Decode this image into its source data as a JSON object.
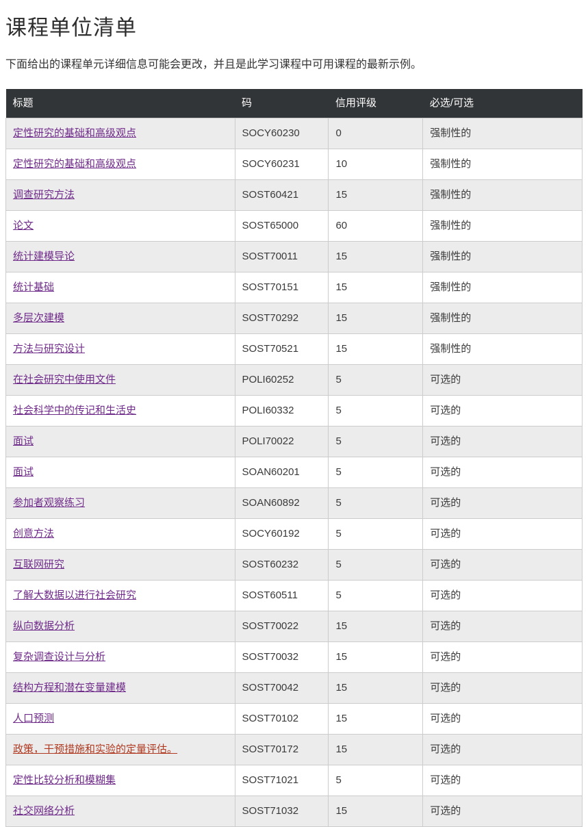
{
  "page": {
    "title": "课程单位清单",
    "intro": "下面给出的课程单元详细信息可能会更改，并且是此学习课程中可用课程的最新示例。"
  },
  "colors": {
    "table_header_bg": "#323537",
    "table_header_text": "#ffffff",
    "stripe_row_bg": "#ececec",
    "cell_border": "#cccccc",
    "link_purple": "#702c8a",
    "link_red": "#b03a21",
    "body_text": "#3a3a3a"
  },
  "table": {
    "headers": [
      "标题",
      "码",
      "信用评级",
      "必选/可选"
    ],
    "rows": [
      {
        "title": "定性研究的基础和高级观点",
        "code": "SOCY60230",
        "credit": "0",
        "requirement": "强制性的"
      },
      {
        "title": "定性研究的基础和高级观点",
        "code": "SOCY60231",
        "credit": "10",
        "requirement": "强制性的"
      },
      {
        "title": "调查研究方法",
        "code": "SOST60421",
        "credit": "15",
        "requirement": "强制性的"
      },
      {
        "title": "论文",
        "code": "SOST65000",
        "credit": "60",
        "requirement": "强制性的"
      },
      {
        "title": "统计建模导论",
        "code": "SOST70011",
        "credit": "15",
        "requirement": "强制性的"
      },
      {
        "title": "统计基础",
        "code": "SOST70151",
        "credit": "15",
        "requirement": "强制性的"
      },
      {
        "title": "多层次建模",
        "code": "SOST70292",
        "credit": "15",
        "requirement": "强制性的"
      },
      {
        "title": "方法与研究设计",
        "code": "SOST70521",
        "credit": "15",
        "requirement": "强制性的"
      },
      {
        "title": "在社会研究中使用文件",
        "code": "POLI60252",
        "credit": "5",
        "requirement": "可选的"
      },
      {
        "title": "社会科学中的传记和生活史",
        "code": "POLI60332",
        "credit": "5",
        "requirement": "可选的"
      },
      {
        "title": "面试",
        "code": "POLI70022",
        "credit": "5",
        "requirement": "可选的"
      },
      {
        "title": "面试",
        "code": "SOAN60201",
        "credit": "5",
        "requirement": "可选的"
      },
      {
        "title": "参加者观察练习",
        "code": "SOAN60892",
        "credit": "5",
        "requirement": "可选的"
      },
      {
        "title": "创意方法",
        "code": "SOCY60192",
        "credit": "5",
        "requirement": "可选的"
      },
      {
        "title": "互联网研究",
        "code": "SOST60232",
        "credit": "5",
        "requirement": "可选的"
      },
      {
        "title": "了解大数据以进行社会研究",
        "code": "SOST60511",
        "credit": "5",
        "requirement": "可选的"
      },
      {
        "title": "纵向数据分析",
        "code": "SOST70022",
        "credit": "15",
        "requirement": "可选的"
      },
      {
        "title": "复杂调查设计与分析",
        "code": "SOST70032",
        "credit": "15",
        "requirement": "可选的"
      },
      {
        "title": "结构方程和潜在变量建模",
        "code": "SOST70042",
        "credit": "15",
        "requirement": "可选的"
      },
      {
        "title": "人口预测",
        "code": "SOST70102",
        "credit": "15",
        "requirement": "可选的"
      },
      {
        "title": "政策，干预措施和实验的定量评估。",
        "code": "SOST70172",
        "credit": "15",
        "requirement": "可选的",
        "variant": "red"
      },
      {
        "title": "定性比较分析和模糊集",
        "code": "SOST71021",
        "credit": "5",
        "requirement": "可选的"
      },
      {
        "title": "社交网络分析",
        "code": "SOST71032",
        "credit": "15",
        "requirement": "可选的"
      }
    ]
  }
}
